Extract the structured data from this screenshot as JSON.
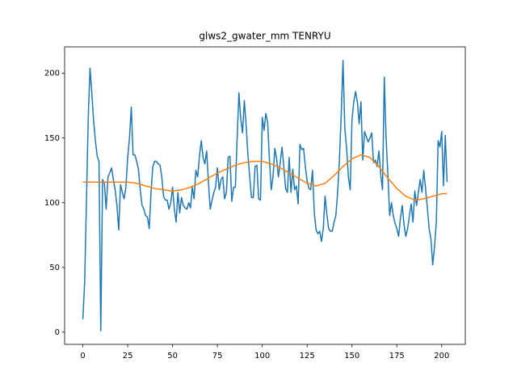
{
  "chart_data": {
    "type": "line",
    "title": "glws2_gwater_mm TENRYU",
    "xlim": [
      -10.15,
      213.15
    ],
    "ylim": [
      -9.45,
      220.45
    ],
    "xticks": [
      0,
      25,
      50,
      75,
      100,
      125,
      150,
      175,
      200
    ],
    "yticks": [
      0,
      50,
      100,
      150,
      200
    ],
    "series": [
      {
        "color": "#1f77b4",
        "x": [
          0,
          1,
          2,
          3,
          4,
          5,
          6,
          7,
          8,
          9,
          10,
          11,
          12,
          13,
          14,
          15,
          16,
          17,
          18,
          19,
          20,
          21,
          22,
          23,
          24,
          25,
          26,
          27,
          28,
          29,
          30,
          31,
          32,
          33,
          34,
          35,
          36,
          37,
          38,
          39,
          40,
          41,
          42,
          43,
          44,
          45,
          46,
          47,
          48,
          49,
          50,
          51,
          52,
          53,
          54,
          55,
          56,
          57,
          58,
          59,
          60,
          61,
          62,
          63,
          64,
          65,
          66,
          67,
          68,
          69,
          70,
          71,
          72,
          73,
          74,
          75,
          76,
          77,
          78,
          79,
          80,
          81,
          82,
          83,
          84,
          85,
          86,
          87,
          88,
          89,
          90,
          91,
          92,
          93,
          94,
          95,
          96,
          97,
          98,
          99,
          100,
          101,
          102,
          103,
          104,
          105,
          106,
          107,
          108,
          109,
          110,
          111,
          112,
          113,
          114,
          115,
          116,
          117,
          118,
          119,
          120,
          121,
          122,
          123,
          124,
          125,
          126,
          127,
          128,
          129,
          130,
          131,
          132,
          133,
          134,
          135,
          136,
          137,
          138,
          139,
          140,
          141,
          142,
          143,
          144,
          145,
          146,
          147,
          148,
          149,
          150,
          151,
          152,
          153,
          154,
          155,
          156,
          157,
          158,
          159,
          160,
          161,
          162,
          163,
          164,
          165,
          166,
          167,
          168,
          169,
          170,
          171,
          172,
          173,
          174,
          175,
          176,
          177,
          178,
          179,
          180,
          181,
          182,
          183,
          184,
          185,
          186,
          187,
          188,
          189,
          190,
          191,
          192,
          193,
          194,
          195,
          196,
          197,
          198,
          199,
          200,
          201,
          202,
          203
        ],
        "values": [
          10,
          38,
          100,
          165,
          204,
          185,
          163,
          148,
          136,
          132,
          1,
          118,
          115,
          95,
          120,
          123,
          127,
          118,
          110,
          98,
          79,
          114,
          108,
          103,
          112,
          135,
          150,
          174,
          137,
          137,
          132,
          126,
          110,
          98,
          95,
          90,
          89,
          80,
          108,
          128,
          132,
          132,
          130,
          129,
          120,
          105,
          102,
          102,
          95,
          100,
          112,
          95,
          85,
          108,
          92,
          104,
          98,
          96,
          95,
          100,
          96,
          112,
          103,
          125,
          120,
          136,
          148,
          135,
          130,
          140,
          116,
          95,
          102,
          108,
          112,
          127,
          110,
          118,
          120,
          103,
          108,
          135,
          136,
          101,
          112,
          112,
          150,
          185,
          165,
          154,
          179,
          160,
          137,
          120,
          104,
          104,
          128,
          129,
          103,
          102,
          166,
          156,
          169,
          162,
          133,
          110,
          120,
          142,
          134,
          120,
          131,
          143,
          128,
          111,
          108,
          135,
          108,
          126,
          110,
          113,
          99,
          145,
          141,
          142,
          128,
          117,
          111,
          110,
          125,
          92,
          79,
          76,
          78,
          70,
          80,
          105,
          91,
          80,
          78,
          78,
          85,
          90,
          108,
          133,
          168,
          210,
          158,
          142,
          120,
          110,
          164,
          178,
          186,
          178,
          161,
          178,
          133,
          155,
          151,
          147,
          150,
          154,
          131,
          133,
          128,
          140,
          122,
          110,
          197,
          150,
          122,
          90,
          100,
          90,
          84,
          80,
          74,
          88,
          98,
          83,
          74,
          80,
          90,
          99,
          85,
          109,
          98,
          108,
          118,
          108,
          125,
          111,
          96,
          80,
          72,
          52,
          66,
          85,
          148,
          143,
          155,
          113,
          152,
          116
        ]
      },
      {
        "color": "#ff7f0e",
        "x": [
          0,
          5,
          10,
          15,
          20,
          25,
          30,
          35,
          40,
          45,
          50,
          55,
          60,
          65,
          70,
          75,
          80,
          85,
          90,
          95,
          100,
          105,
          110,
          115,
          120,
          125,
          130,
          135,
          140,
          145,
          150,
          155,
          160,
          165,
          170,
          175,
          180,
          185,
          190,
          195,
          200,
          203
        ],
        "values": [
          116,
          116,
          116,
          116,
          116,
          116,
          115,
          113,
          111,
          110,
          109,
          110,
          112,
          115,
          119,
          123,
          126,
          129,
          131,
          132,
          132,
          130,
          127,
          123,
          119,
          115,
          113,
          115,
          121,
          128,
          134,
          137,
          135,
          128,
          119,
          111,
          105,
          102,
          103,
          105,
          107,
          107
        ]
      }
    ]
  }
}
